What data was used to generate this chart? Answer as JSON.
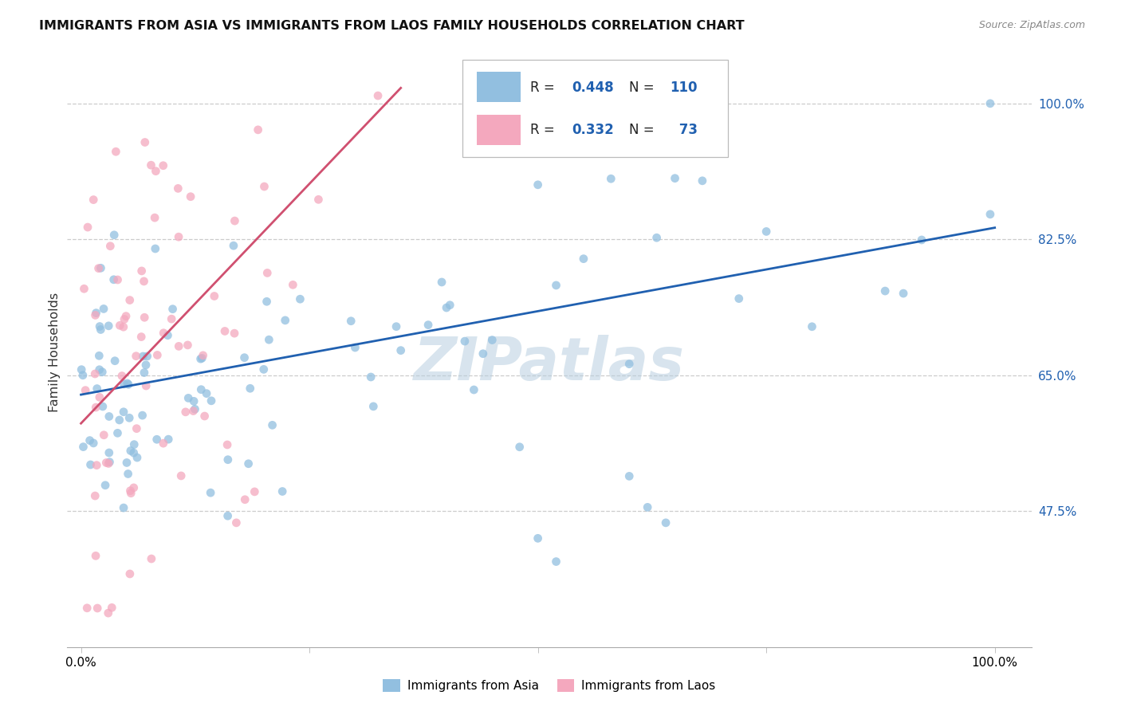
{
  "title": "IMMIGRANTS FROM ASIA VS IMMIGRANTS FROM LAOS FAMILY HOUSEHOLDS CORRELATION CHART",
  "source": "Source: ZipAtlas.com",
  "ylabel": "Family Households",
  "color_asia": "#92bfe0",
  "color_laos": "#f4a8be",
  "trendline_asia": "#2060b0",
  "trendline_laos": "#d05070",
  "r_asia": 0.448,
  "n_asia": 110,
  "r_laos": 0.332,
  "n_laos": 73,
  "y_ticks": [
    0.475,
    0.65,
    0.825,
    1.0
  ],
  "y_tick_labels": [
    "47.5%",
    "65.0%",
    "82.5%",
    "100.0%"
  ],
  "asia_trend": [
    0.0,
    0.625,
    1.0,
    0.84
  ],
  "laos_trend": [
    0.0,
    0.588,
    0.35,
    1.02
  ],
  "xlim": [
    -0.015,
    1.04
  ],
  "ylim": [
    0.3,
    1.06
  ],
  "watermark": "ZIPatlas"
}
